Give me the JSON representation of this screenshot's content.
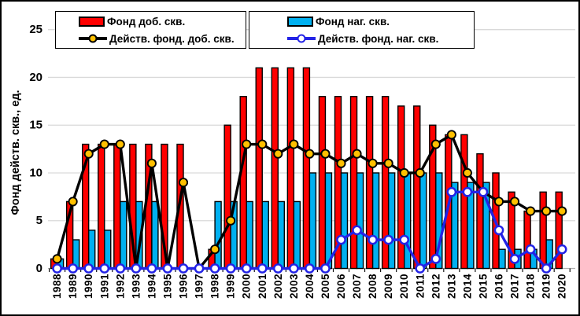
{
  "chart_data": {
    "type": "bar+line",
    "title": "",
    "xlabel": "",
    "ylabel": "Фонд действ. скв., ед.",
    "ylim": [
      0,
      25
    ],
    "yticks": [
      0,
      5,
      10,
      15,
      20,
      25
    ],
    "grid": true,
    "legend_position": "top",
    "categories": [
      "1988",
      "1989",
      "1990",
      "1991",
      "1992",
      "1993",
      "1994",
      "1995",
      "1996",
      "1997",
      "1998",
      "1999",
      "2000",
      "2001",
      "2002",
      "2003",
      "2004",
      "2005",
      "2006",
      "2007",
      "2008",
      "2009",
      "2010",
      "2011",
      "2012",
      "2013",
      "2014",
      "2015",
      "2016",
      "2017",
      "2018",
      "2019",
      "2020"
    ],
    "series": [
      {
        "name": "Фонд доб. скв.",
        "type": "bar",
        "color": "#FF0000",
        "values": [
          1,
          7,
          13,
          13,
          13,
          13,
          13,
          13,
          13,
          0,
          2,
          15,
          18,
          21,
          21,
          21,
          21,
          18,
          18,
          18,
          18,
          18,
          17,
          17,
          15,
          14,
          14,
          12,
          10,
          8,
          6,
          8,
          8
        ]
      },
      {
        "name": "Фонд наг. скв.",
        "type": "bar",
        "color": "#00B0F0",
        "values": [
          1,
          3,
          4,
          4,
          7,
          7,
          7,
          0,
          0,
          0,
          7,
          7,
          7,
          7,
          7,
          7,
          10,
          10,
          10,
          10,
          10,
          10,
          10,
          10,
          10,
          9,
          9,
          9,
          2,
          2,
          2,
          3,
          0
        ]
      },
      {
        "name": "Действ. фонд. доб. скв.",
        "type": "line",
        "color": "#000000",
        "marker_fill": "#FFC000",
        "values": [
          1,
          7,
          12,
          13,
          13,
          0,
          11,
          0,
          9,
          0,
          2,
          5,
          13,
          13,
          12,
          13,
          12,
          12,
          11,
          12,
          11,
          11,
          10,
          10,
          13,
          14,
          10,
          8,
          7,
          7,
          6,
          6,
          6
        ]
      },
      {
        "name": "Действ. фонд. наг. скв.",
        "type": "line",
        "color": "#2323E6",
        "marker_fill": "#FFFFFF",
        "values": [
          0,
          0,
          0,
          0,
          0,
          0,
          0,
          0,
          0,
          0,
          0,
          0,
          0,
          0,
          0,
          0,
          0,
          0,
          3,
          4,
          3,
          3,
          3,
          0,
          1,
          8,
          8,
          8,
          4,
          1,
          2,
          0,
          2
        ]
      }
    ],
    "colors": {
      "grid": "#D9D9D9",
      "baseline": "#B0B0B0",
      "axis_text": "#000000"
    }
  }
}
